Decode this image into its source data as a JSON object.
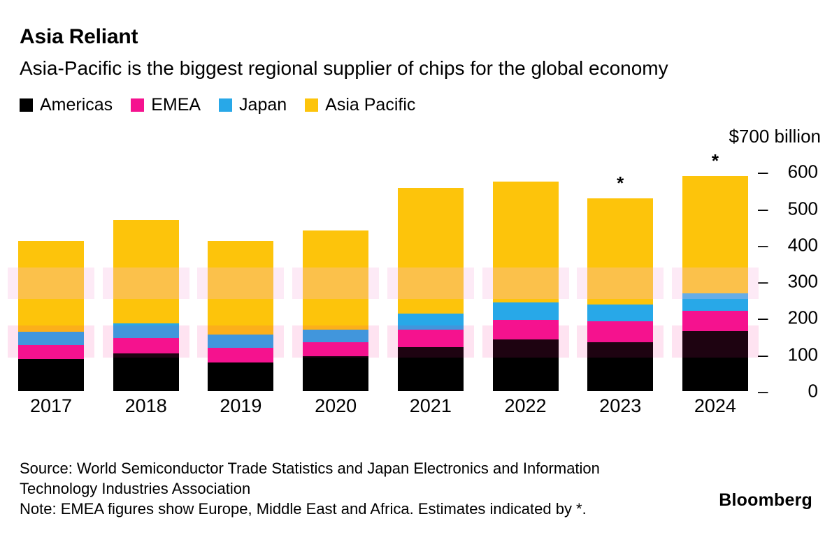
{
  "chart_data": {
    "type": "bar",
    "stacked": true,
    "title": "Asia Reliant",
    "subtitle": "Asia-Pacific is the biggest regional supplier of chips for the global economy",
    "unit": "billion USD",
    "categories": [
      "2017",
      "2018",
      "2019",
      "2020",
      "2021",
      "2022",
      "2023",
      "2024"
    ],
    "series": [
      {
        "name": "Americas",
        "color": "#000000",
        "values": [
          88,
          103,
          79,
          95,
          121,
          141,
          134,
          165
        ]
      },
      {
        "name": "EMEA",
        "color": "#f5128f",
        "values": [
          38,
          43,
          40,
          38,
          48,
          54,
          57,
          55
        ]
      },
      {
        "name": "Japan",
        "color": "#28a8e8",
        "values": [
          37,
          40,
          36,
          36,
          44,
          48,
          47,
          48
        ]
      },
      {
        "name": "Asia Pacific",
        "color": "#fdc40b",
        "values": [
          249,
          283,
          257,
          271,
          343,
          331,
          289,
          322
        ]
      }
    ],
    "annotations": [
      {
        "category": "2023",
        "text": "*"
      },
      {
        "category": "2024",
        "text": "*"
      }
    ],
    "ylim": [
      0,
      700
    ],
    "grid": false,
    "legend_position": "top",
    "y_axis": {
      "top_label": "$700 billion",
      "ticks": [
        600,
        500,
        400,
        300,
        200,
        100,
        0
      ],
      "tick_prefix": "–"
    }
  },
  "footer": {
    "source": "Source: World Semiconductor Trade Statistics and Japan Electronics and Information Technology Industries Association",
    "note": "Note: EMEA figures show Europe, Middle East and Africa. Estimates indicated by *.",
    "brand": "Bloomberg"
  }
}
